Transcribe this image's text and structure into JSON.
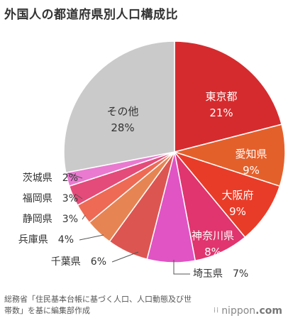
{
  "title": "外国人の都道府県別人口構成比",
  "source": "総務省「住民基本台帳に基づく人口、人口動態及び世帯数」を基に編集部作成",
  "brand": {
    "name": "nippon",
    "domain": ".com"
  },
  "chart_data": {
    "type": "pie",
    "title": "外国人の都道府県別人口構成比",
    "start_angle_deg": 0,
    "direction": "clockwise",
    "slices": [
      {
        "label": "東京都",
        "value": 21,
        "display": "21%",
        "color": "#d62b2e",
        "label_inside": true
      },
      {
        "label": "愛知県",
        "value": 9,
        "display": "9%",
        "color": "#e4602b",
        "label_inside": true
      },
      {
        "label": "大阪府",
        "value": 9,
        "display": "9%",
        "color": "#e93c28",
        "label_inside": true
      },
      {
        "label": "神奈川県",
        "value": 8,
        "display": "8%",
        "color": "#e0356e",
        "label_inside": true
      },
      {
        "label": "埼玉県",
        "value": 7,
        "display": "7%",
        "color": "#e054c4",
        "label_inside": false
      },
      {
        "label": "千葉県",
        "value": 6,
        "display": "6%",
        "color": "#dd5551",
        "label_inside": false
      },
      {
        "label": "兵庫県",
        "value": 4,
        "display": "4%",
        "color": "#e68553",
        "label_inside": false
      },
      {
        "label": "静岡県",
        "value": 3,
        "display": "3%",
        "color": "#ee6a55",
        "label_inside": false
      },
      {
        "label": "福岡県",
        "value": 3,
        "display": "3%",
        "color": "#e44b7a",
        "label_inside": false
      },
      {
        "label": "茨城県",
        "value": 2,
        "display": "2%",
        "color": "#e97ad0",
        "label_inside": false
      },
      {
        "label": "その他",
        "value": 28,
        "display": "28%",
        "color": "#cacaca",
        "label_inside": true
      }
    ]
  }
}
